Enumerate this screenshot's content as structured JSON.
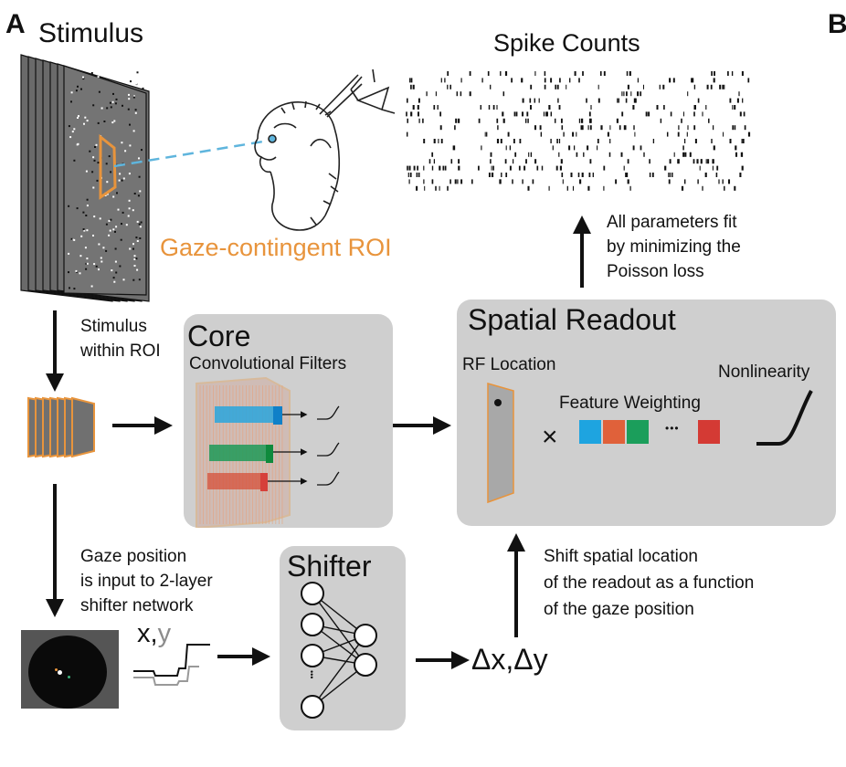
{
  "panel_labels": {
    "a": "A",
    "b": "B"
  },
  "stimulus": {
    "title": "Stimulus",
    "roi_label": "Gaze-contingent ROI",
    "roi_color": "#e8943c"
  },
  "spikes": {
    "title": "Spike Counts"
  },
  "fit_note": {
    "line1": "All parameters fit",
    "line2": "by minimizing the",
    "line3": "Poisson loss"
  },
  "stim_roi_note": {
    "line1": "Stimulus",
    "line2": "within ROI"
  },
  "core": {
    "title": "Core",
    "subtitle": "Convolutional Filters",
    "channel_colors": [
      "#2aa6dd",
      "#1f9a58",
      "#d6503a"
    ]
  },
  "readout": {
    "title": "Spatial Readout",
    "rf_label": "RF Location",
    "feature_label": "Feature Weighting",
    "nonlinearity_label": "Nonlinearity",
    "times_symbol": "×",
    "ellipsis": "•••",
    "weight_colors": [
      "#1ea4e0",
      "#e0613a",
      "#1b9e5b",
      "#d43a34"
    ]
  },
  "gaze_note": {
    "line1": "Gaze position",
    "line2": "is input to 2-layer",
    "line3": "shifter network"
  },
  "xy": {
    "x": "x,",
    "y": "y",
    "y_color": "#8c8c8c"
  },
  "shifter": {
    "title": "Shifter",
    "dots": "•••"
  },
  "delta": {
    "label": "Δx,Δy"
  },
  "shift_note": {
    "line1": "Shift spatial location",
    "line2": "of the readout as a function",
    "line3": "of the gaze position"
  }
}
